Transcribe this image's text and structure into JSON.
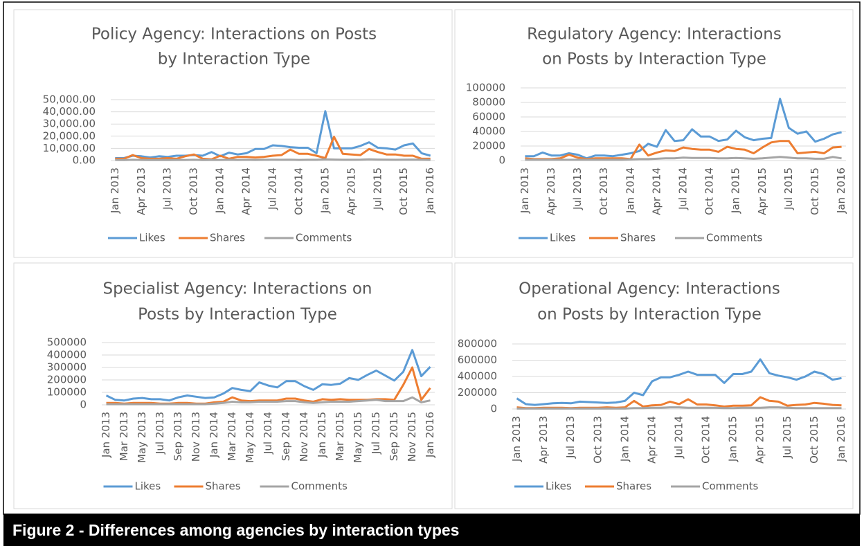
{
  "chart_data": [
    {
      "type": "line",
      "title": [
        "Policy Agency: Interactions on Posts",
        "by Interaction Type"
      ],
      "categories": [
        "Jan 2013",
        null,
        null,
        "Apr 2013",
        null,
        null,
        "Jul 2013",
        null,
        null,
        "Oct 2013",
        null,
        null,
        "Jan 2014",
        null,
        null,
        "Apr 2014",
        null,
        null,
        "Jul 2014",
        null,
        null,
        "Oct 2014",
        null,
        null,
        "Jan 2015",
        null,
        null,
        "Apr 2015",
        null,
        null,
        "Jul 2015",
        null,
        null,
        "Oct 2015",
        null,
        null,
        "Jan 2016"
      ],
      "ylim": [
        0,
        50000
      ],
      "yticks": [
        {
          "value": 0,
          "label": "0.00"
        },
        {
          "value": 10000,
          "label": "10,000.00"
        },
        {
          "value": 20000,
          "label": "20,000.00"
        },
        {
          "value": 30000,
          "label": "30,000.00"
        },
        {
          "value": 40000,
          "label": "40,000.00"
        },
        {
          "value": 50000,
          "label": "50,000.00"
        }
      ],
      "grid": true,
      "legend": "bottom",
      "series": [
        {
          "name": "Likes",
          "color": "#5b9bd5",
          "values": [
            2000,
            2000,
            4000,
            3500,
            2500,
            3500,
            3000,
            4000,
            4000,
            4500,
            4000,
            7000,
            3500,
            6500,
            5000,
            6000,
            9500,
            9500,
            12500,
            12000,
            11000,
            10500,
            10500,
            6000,
            40500,
            10000,
            10000,
            10000,
            12000,
            15000,
            10500,
            10000,
            9000,
            12500,
            14000,
            6000,
            4000
          ]
        },
        {
          "name": "Shares",
          "color": "#ed7d31",
          "values": [
            1500,
            1500,
            4500,
            2000,
            1500,
            1500,
            2000,
            1500,
            3500,
            5000,
            1500,
            1000,
            4000,
            1500,
            3000,
            3000,
            2500,
            3000,
            4000,
            4500,
            9000,
            5500,
            5500,
            4000,
            2000,
            19500,
            5500,
            5000,
            4500,
            9500,
            7000,
            5000,
            5000,
            4000,
            4000,
            1500,
            1500
          ]
        },
        {
          "name": "Comments",
          "color": "#a5a5a5",
          "values": [
            500,
            400,
            600,
            500,
            400,
            500,
            400,
            500,
            500,
            600,
            400,
            500,
            500,
            600,
            500,
            600,
            500,
            600,
            700,
            600,
            700,
            500,
            600,
            600,
            1000,
            800,
            600,
            600,
            700,
            1000,
            800,
            700,
            600,
            700,
            800,
            600,
            500
          ]
        }
      ]
    },
    {
      "type": "line",
      "title": [
        "Regulatory Agency: Interactions",
        "on Posts by Interaction Type"
      ],
      "categories": [
        "Jan 2013",
        null,
        null,
        "Apr 2013",
        null,
        null,
        "Jul 2013",
        null,
        null,
        "Oct 2013",
        null,
        null,
        "Jan 2014",
        null,
        null,
        "Apr 2014",
        null,
        null,
        "Jul 2014",
        null,
        null,
        "Oct 2014",
        null,
        null,
        "Jan 2015",
        null,
        null,
        "Apr 2015",
        null,
        null,
        "Jul 2015",
        null,
        null,
        "Oct 2015",
        null,
        null,
        "Jan 2016"
      ],
      "ylim": [
        0,
        100000
      ],
      "yticks": [
        0,
        20000,
        40000,
        60000,
        80000,
        100000
      ],
      "grid": true,
      "legend": "bottom",
      "series": [
        {
          "name": "Likes",
          "color": "#5b9bd5",
          "values": [
            6000,
            6000,
            11000,
            7000,
            7000,
            10000,
            8000,
            3000,
            7000,
            7000,
            6000,
            8000,
            10000,
            13000,
            23000,
            19000,
            42000,
            27000,
            28000,
            43000,
            33000,
            33000,
            27000,
            29000,
            41000,
            32000,
            28000,
            30000,
            31000,
            85000,
            45000,
            37000,
            40000,
            26000,
            30000,
            36000,
            39000
          ]
        },
        {
          "name": "Shares",
          "color": "#ed7d31",
          "values": [
            3000,
            2000,
            2000,
            2000,
            3000,
            8000,
            4000,
            2000,
            3000,
            3000,
            3000,
            3000,
            2000,
            22000,
            7000,
            11000,
            14000,
            13000,
            18000,
            16000,
            15000,
            15000,
            12000,
            19000,
            16000,
            15000,
            10000,
            18000,
            25000,
            27000,
            27000,
            10000,
            11000,
            12000,
            10000,
            18000,
            19000
          ]
        },
        {
          "name": "Comments",
          "color": "#a5a5a5",
          "values": [
            1000,
            1000,
            1000,
            1000,
            1000,
            1000,
            1000,
            1000,
            1000,
            1000,
            1000,
            1000,
            1500,
            2000,
            2000,
            2500,
            3000,
            3000,
            4000,
            3500,
            3500,
            3500,
            3000,
            3000,
            3500,
            3000,
            2500,
            3000,
            4000,
            5000,
            4000,
            3000,
            3000,
            2500,
            2500,
            5000,
            3000
          ]
        }
      ]
    },
    {
      "type": "line",
      "title": [
        "Specialist Agency: Interactions on",
        "Posts by Interaction Type"
      ],
      "categories": [
        "Jan 2013",
        null,
        "Mar 2013",
        null,
        "May 2013",
        null,
        "Jul 2013",
        null,
        "Sep 2013",
        null,
        "Nov 2013",
        null,
        "Jan 2014",
        null,
        "Mar 2014",
        null,
        "May 2014",
        null,
        "Jul 2014",
        null,
        "Sep 2014",
        null,
        "Nov 2014",
        null,
        "Jan 2015",
        null,
        "Mar 2015",
        null,
        "May 2015",
        null,
        "Jul 2015",
        null,
        "Sep 2015",
        null,
        "Nov 2015",
        null,
        "Jan 2016"
      ],
      "ylim": [
        0,
        500000
      ],
      "yticks": [
        0,
        100000,
        200000,
        300000,
        400000,
        500000
      ],
      "grid": true,
      "legend": "bottom",
      "series": [
        {
          "name": "Likes",
          "color": "#5b9bd5",
          "values": [
            75000,
            40000,
            35000,
            50000,
            55000,
            45000,
            45000,
            35000,
            60000,
            75000,
            65000,
            55000,
            60000,
            90000,
            135000,
            120000,
            110000,
            180000,
            155000,
            140000,
            190000,
            190000,
            150000,
            120000,
            165000,
            160000,
            170000,
            215000,
            200000,
            240000,
            275000,
            235000,
            195000,
            265000,
            440000,
            230000,
            305000
          ]
        },
        {
          "name": "Shares",
          "color": "#ed7d31",
          "values": [
            15000,
            15000,
            10000,
            15000,
            15000,
            15000,
            10000,
            10000,
            15000,
            15000,
            10000,
            10000,
            20000,
            25000,
            60000,
            35000,
            30000,
            35000,
            35000,
            35000,
            50000,
            50000,
            35000,
            25000,
            45000,
            40000,
            45000,
            40000,
            40000,
            40000,
            45000,
            45000,
            40000,
            160000,
            300000,
            40000,
            135000
          ]
        },
        {
          "name": "Comments",
          "color": "#a5a5a5",
          "values": [
            5000,
            5000,
            5000,
            5000,
            5000,
            5000,
            5000,
            5000,
            5000,
            5000,
            5000,
            5000,
            10000,
            15000,
            25000,
            20000,
            20000,
            25000,
            25000,
            25000,
            30000,
            30000,
            20000,
            15000,
            20000,
            25000,
            25000,
            25000,
            30000,
            35000,
            40000,
            30000,
            30000,
            30000,
            60000,
            20000,
            35000
          ]
        }
      ]
    },
    {
      "type": "line",
      "title": [
        "Operational Agency: Interactions",
        "on Posts by Interaction Type"
      ],
      "categories": [
        "Jan 2013",
        null,
        null,
        "Apr 2013",
        null,
        null,
        "Jul 2013",
        null,
        null,
        "Oct 2013",
        null,
        null,
        "Jan 2014",
        null,
        null,
        "Apr 2014",
        null,
        null,
        "Jul 2014",
        null,
        null,
        "Oct 2014",
        null,
        null,
        "Jan 2015",
        null,
        null,
        "Apr 2015",
        null,
        null,
        "Jul 2015",
        null,
        null,
        "Oct 2015",
        null,
        null,
        "Jan 2016"
      ],
      "ylim": [
        0,
        800000
      ],
      "yticks": [
        0,
        200000,
        400000,
        600000,
        800000
      ],
      "grid": true,
      "legend": "bottom",
      "series": [
        {
          "name": "Likes",
          "color": "#5b9bd5",
          "values": [
            130000,
            60000,
            50000,
            60000,
            70000,
            75000,
            70000,
            90000,
            85000,
            80000,
            75000,
            80000,
            100000,
            200000,
            170000,
            340000,
            390000,
            390000,
            420000,
            460000,
            420000,
            420000,
            420000,
            320000,
            430000,
            430000,
            460000,
            610000,
            440000,
            410000,
            390000,
            360000,
            400000,
            460000,
            430000,
            360000,
            380000
          ]
        },
        {
          "name": "Shares",
          "color": "#ed7d31",
          "values": [
            20000,
            10000,
            10000,
            15000,
            15000,
            15000,
            10000,
            15000,
            15000,
            15000,
            20000,
            15000,
            20000,
            100000,
            30000,
            45000,
            50000,
            90000,
            60000,
            120000,
            55000,
            55000,
            45000,
            30000,
            40000,
            40000,
            45000,
            145000,
            100000,
            90000,
            40000,
            50000,
            55000,
            75000,
            65000,
            50000,
            45000
          ]
        },
        {
          "name": "Comments",
          "color": "#a5a5a5",
          "values": [
            5000,
            5000,
            5000,
            5000,
            5000,
            5000,
            5000,
            5000,
            5000,
            5000,
            5000,
            5000,
            5000,
            10000,
            10000,
            15000,
            15000,
            20000,
            20000,
            15000,
            15000,
            15000,
            15000,
            10000,
            10000,
            15000,
            15000,
            15000,
            20000,
            20000,
            15000,
            10000,
            10000,
            10000,
            10000,
            10000,
            10000
          ]
        }
      ]
    }
  ],
  "caption": "Figure 2 - Differences among agencies by interaction types"
}
